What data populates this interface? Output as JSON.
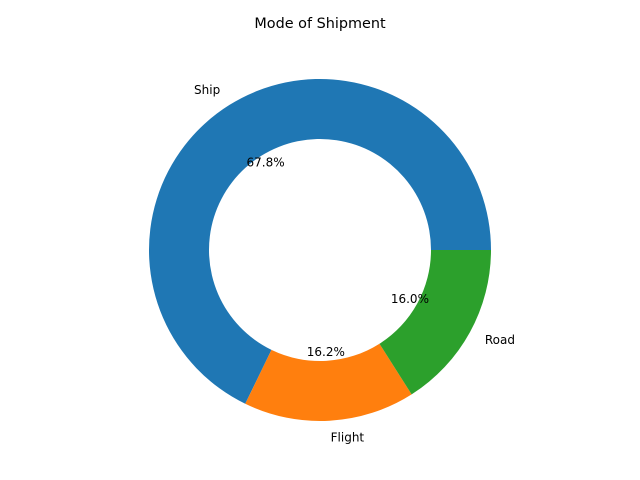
{
  "chart_data": {
    "type": "pie",
    "title": "Mode of Shipment",
    "donut": true,
    "labels": [
      "Ship",
      "Flight",
      "Road"
    ],
    "values": [
      67.8,
      16.2,
      16.0
    ],
    "pct_labels": [
      "67.8%",
      "16.2%",
      "16.0%"
    ],
    "colors": [
      "#1f77b4",
      "#ff7f0e",
      "#2ca02c"
    ],
    "legend": "none"
  }
}
